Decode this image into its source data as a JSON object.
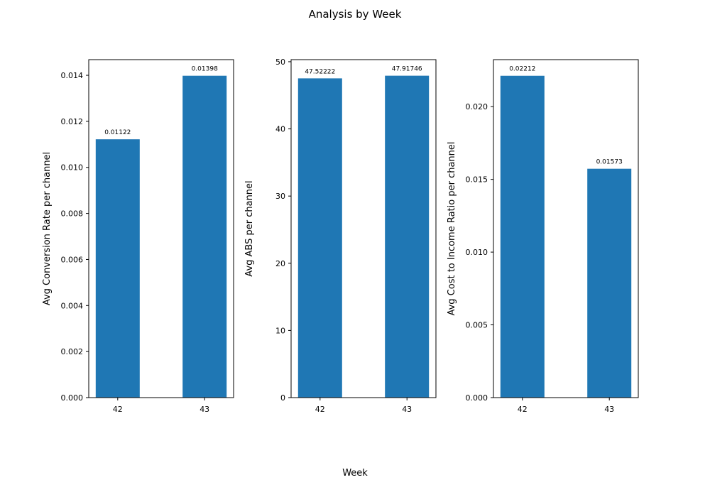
{
  "figure": {
    "title": "Analysis by Week",
    "xlabel": "Week"
  },
  "colors": {
    "bar": "#1f77b4",
    "axis": "#000000",
    "background": "#ffffff"
  },
  "chart_data": [
    {
      "type": "bar",
      "categories": [
        "42",
        "43"
      ],
      "values": [
        0.01122,
        0.01398
      ],
      "value_labels": [
        "0.01122",
        "0.01398"
      ],
      "ylabel": "Avg Conversion Rate per channel",
      "ylim": [
        0,
        0.01468
      ],
      "yticks": [
        0.0,
        0.002,
        0.004,
        0.006,
        0.008,
        0.01,
        0.012,
        0.014
      ],
      "ytick_labels": [
        "0.000",
        "0.002",
        "0.004",
        "0.006",
        "0.008",
        "0.010",
        "0.012",
        "0.014"
      ],
      "grid": false
    },
    {
      "type": "bar",
      "categories": [
        "42",
        "43"
      ],
      "values": [
        47.52222,
        47.91746
      ],
      "value_labels": [
        "47.52222",
        "47.91746"
      ],
      "ylabel": "Avg ABS per channel",
      "ylim": [
        0,
        50.31
      ],
      "yticks": [
        0,
        10,
        20,
        30,
        40,
        50
      ],
      "ytick_labels": [
        "0",
        "10",
        "20",
        "30",
        "40",
        "50"
      ],
      "grid": false
    },
    {
      "type": "bar",
      "categories": [
        "42",
        "43"
      ],
      "values": [
        0.02212,
        0.01573
      ],
      "value_labels": [
        "0.02212",
        "0.01573"
      ],
      "ylabel": "Avg Cost to Income Ratio per channel",
      "ylim": [
        0,
        0.02323
      ],
      "yticks": [
        0.0,
        0.005,
        0.01,
        0.015,
        0.02
      ],
      "ytick_labels": [
        "0.000",
        "0.005",
        "0.010",
        "0.015",
        "0.020"
      ],
      "grid": false
    }
  ]
}
